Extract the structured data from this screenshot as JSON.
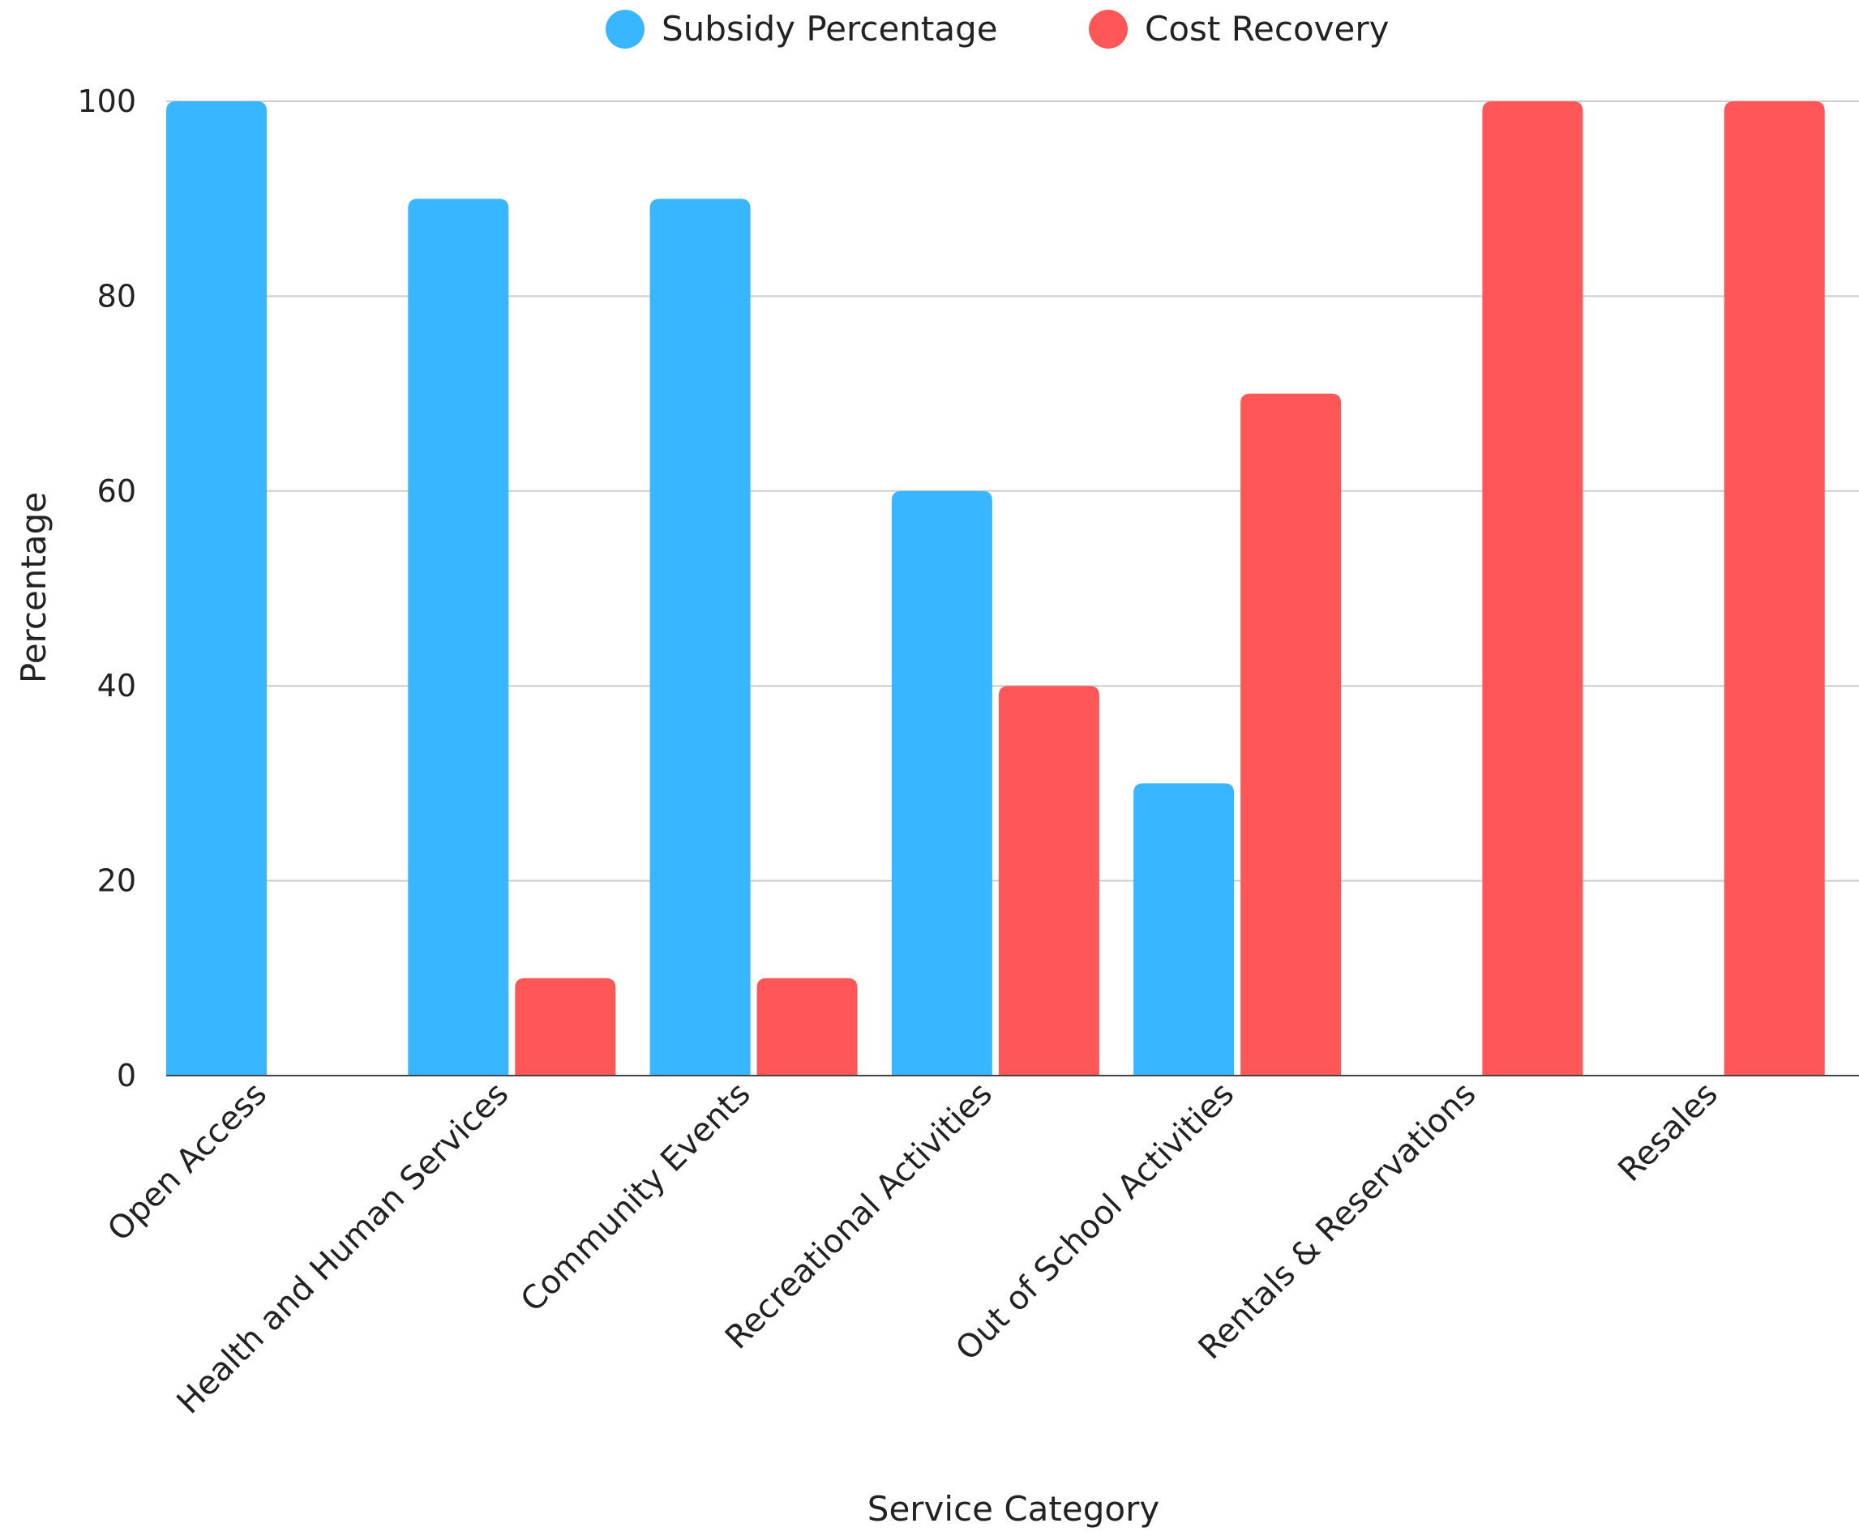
{
  "chart_data": {
    "type": "bar",
    "categories": [
      "Open Access",
      "Health and Human Services",
      "Community Events",
      "Recreational Activities",
      "Out of School Activities",
      "Rentals & Reservations",
      "Resales"
    ],
    "series": [
      {
        "name": "Subsidy Percentage",
        "color": "#38B6FF",
        "values": [
          100,
          90,
          90,
          60,
          30,
          0,
          0
        ]
      },
      {
        "name": "Cost Recovery",
        "color": "#FF5757",
        "values": [
          0,
          10,
          10,
          40,
          70,
          100,
          100
        ]
      }
    ],
    "xlabel": "Service Category",
    "ylabel": "Percentage",
    "ylim": [
      0,
      100
    ],
    "yticks": [
      0,
      20,
      40,
      60,
      80,
      100
    ],
    "grid": true,
    "legend_position": "top-center"
  }
}
